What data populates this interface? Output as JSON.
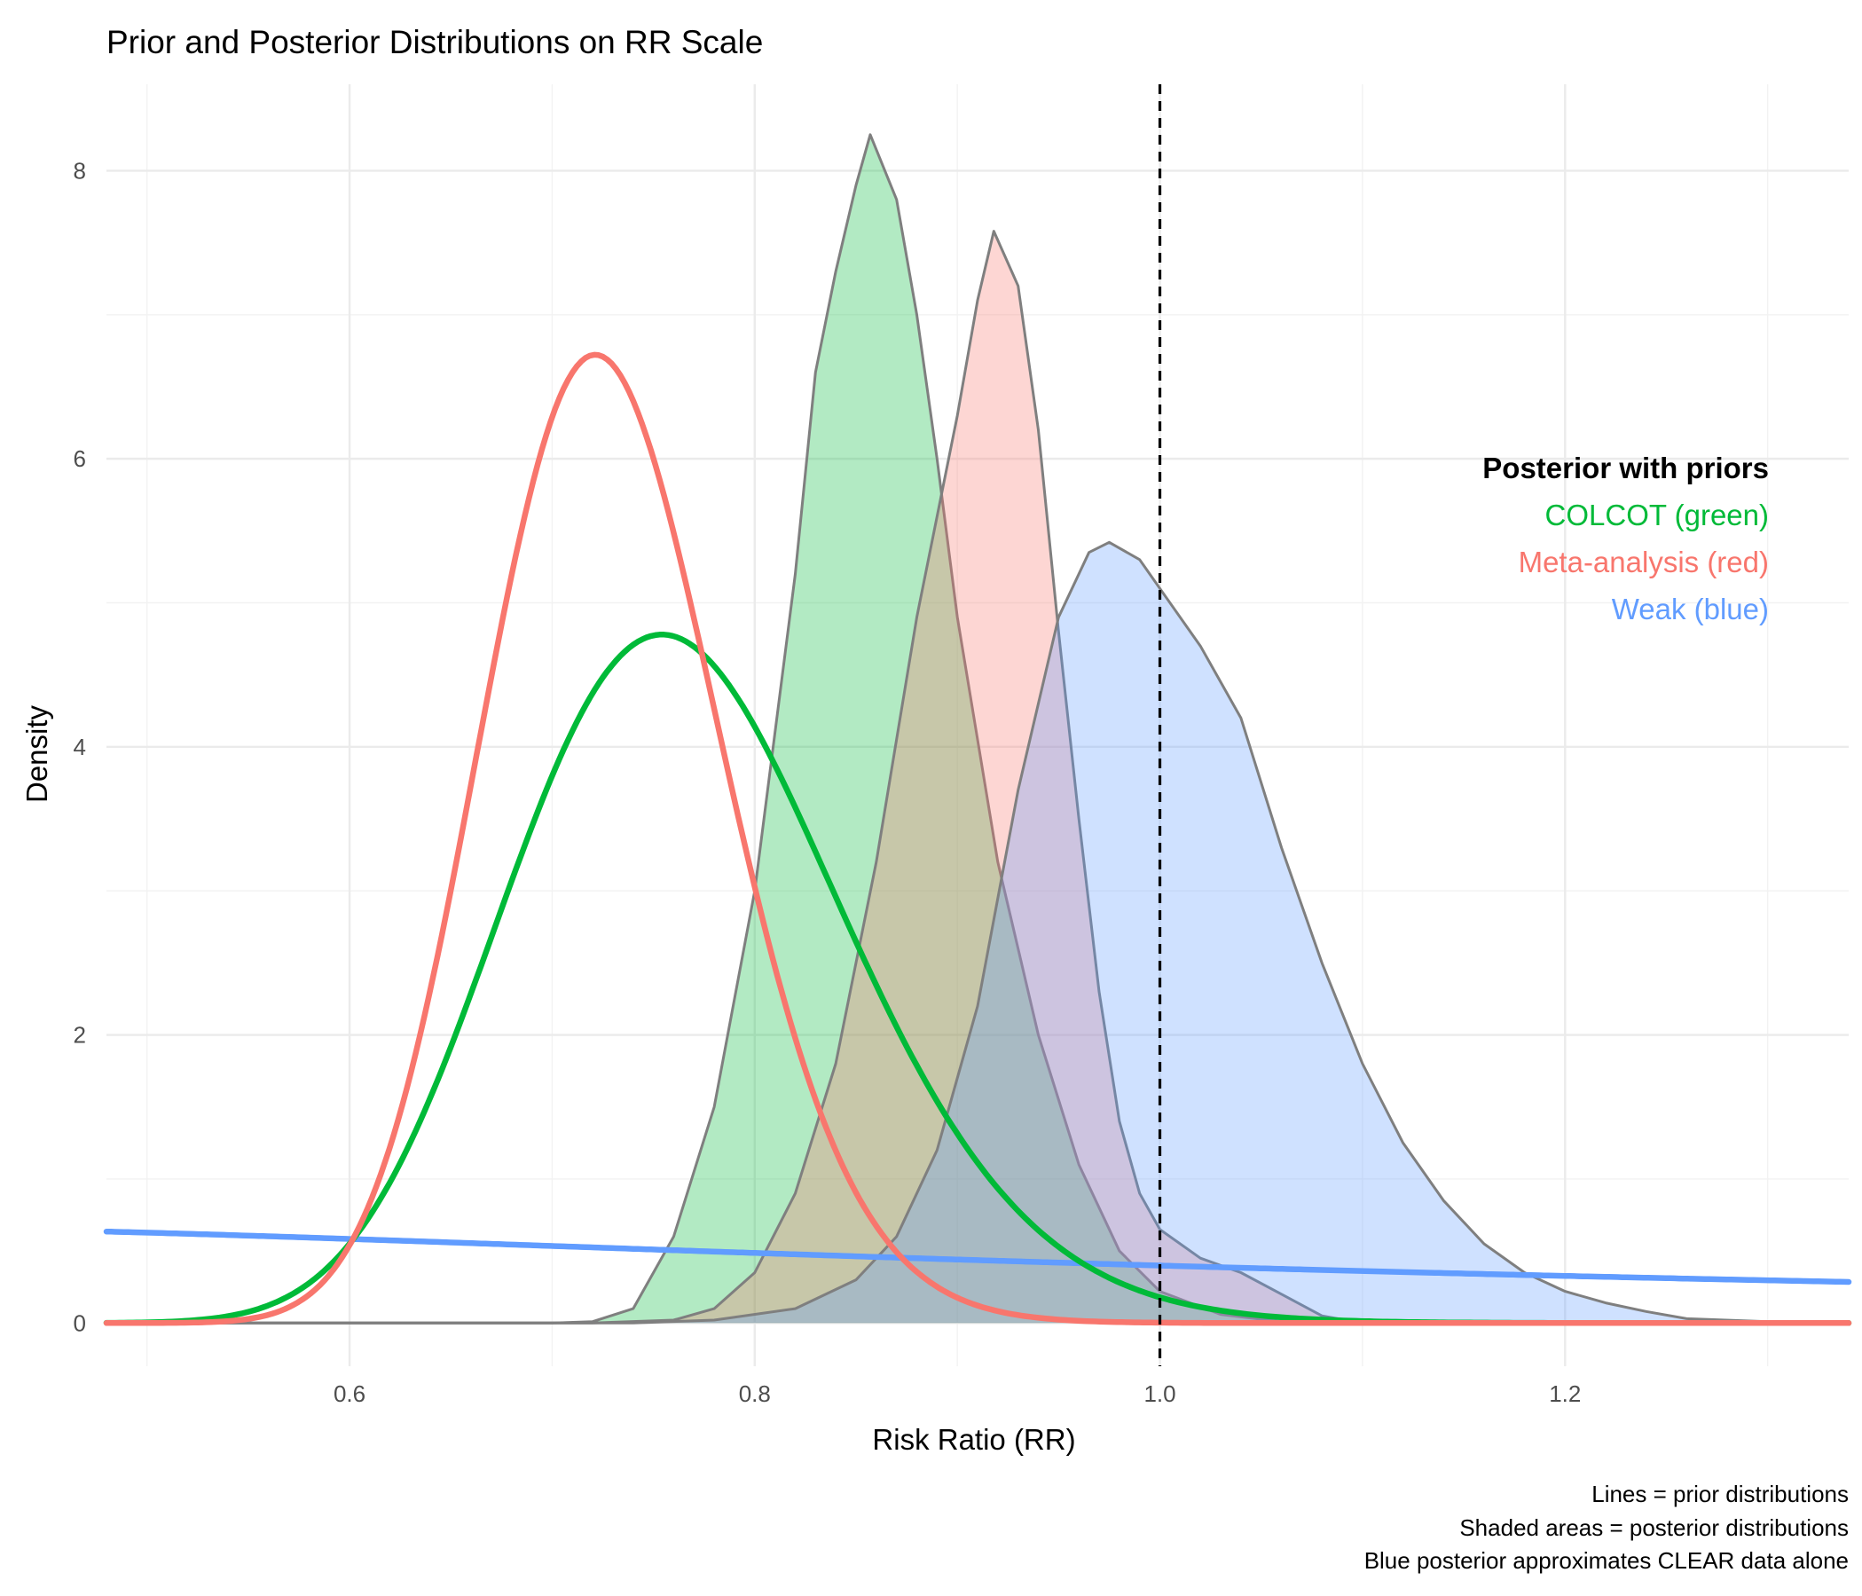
{
  "chart_data": {
    "type": "area",
    "title": "Prior and Posterior Distributions on RR Scale",
    "xlabel": "Risk Ratio (RR)",
    "ylabel": "Density",
    "xlim": [
      0.48,
      1.34
    ],
    "ylim": [
      -0.3,
      8.6
    ],
    "x_ticks": [
      0.6,
      0.8,
      1.0,
      1.2
    ],
    "x_tick_labels": [
      "0.6",
      "0.8",
      "1.0",
      "1.2"
    ],
    "y_ticks": [
      0,
      2,
      4,
      6,
      8
    ],
    "y_tick_labels": [
      "0",
      "2",
      "4",
      "6",
      "8"
    ],
    "grid": true,
    "reference_line": {
      "x": 1.0,
      "style": "dashed",
      "color": "#000000"
    },
    "posteriors": [
      {
        "color": "#00BA38",
        "points": [
          [
            0.7,
            0
          ],
          [
            0.72,
            0.01
          ],
          [
            0.74,
            0.1
          ],
          [
            0.76,
            0.6
          ],
          [
            0.78,
            1.5
          ],
          [
            0.8,
            3.0
          ],
          [
            0.82,
            5.2
          ],
          [
            0.83,
            6.6
          ],
          [
            0.84,
            7.3
          ],
          [
            0.85,
            7.9
          ],
          [
            0.857,
            8.25
          ],
          [
            0.87,
            7.8
          ],
          [
            0.88,
            7.0
          ],
          [
            0.89,
            6.0
          ],
          [
            0.9,
            4.9
          ],
          [
            0.92,
            3.2
          ],
          [
            0.94,
            2.0
          ],
          [
            0.96,
            1.1
          ],
          [
            0.98,
            0.5
          ],
          [
            1.0,
            0.22
          ],
          [
            1.03,
            0.06
          ],
          [
            1.06,
            0.01
          ],
          [
            1.1,
            0
          ]
        ]
      },
      {
        "color": "#F8766D",
        "points": [
          [
            0.72,
            0
          ],
          [
            0.76,
            0.02
          ],
          [
            0.78,
            0.1
          ],
          [
            0.8,
            0.35
          ],
          [
            0.82,
            0.9
          ],
          [
            0.84,
            1.8
          ],
          [
            0.86,
            3.2
          ],
          [
            0.88,
            4.9
          ],
          [
            0.9,
            6.3
          ],
          [
            0.91,
            7.1
          ],
          [
            0.918,
            7.58
          ],
          [
            0.93,
            7.2
          ],
          [
            0.94,
            6.2
          ],
          [
            0.95,
            4.8
          ],
          [
            0.96,
            3.5
          ],
          [
            0.97,
            2.3
          ],
          [
            0.98,
            1.4
          ],
          [
            0.99,
            0.9
          ],
          [
            1.0,
            0.65
          ],
          [
            1.02,
            0.45
          ],
          [
            1.04,
            0.35
          ],
          [
            1.06,
            0.2
          ],
          [
            1.08,
            0.05
          ],
          [
            1.1,
            0
          ]
        ]
      },
      {
        "color": "#619CFF",
        "points": [
          [
            0.74,
            0
          ],
          [
            0.78,
            0.02
          ],
          [
            0.82,
            0.1
          ],
          [
            0.85,
            0.3
          ],
          [
            0.87,
            0.6
          ],
          [
            0.89,
            1.2
          ],
          [
            0.91,
            2.2
          ],
          [
            0.93,
            3.7
          ],
          [
            0.95,
            4.9
          ],
          [
            0.965,
            5.35
          ],
          [
            0.975,
            5.42
          ],
          [
            0.99,
            5.3
          ],
          [
            1.0,
            5.1
          ],
          [
            1.02,
            4.7
          ],
          [
            1.04,
            4.2
          ],
          [
            1.06,
            3.3
          ],
          [
            1.08,
            2.5
          ],
          [
            1.1,
            1.8
          ],
          [
            1.12,
            1.25
          ],
          [
            1.14,
            0.85
          ],
          [
            1.16,
            0.55
          ],
          [
            1.18,
            0.35
          ],
          [
            1.2,
            0.22
          ],
          [
            1.22,
            0.14
          ],
          [
            1.24,
            0.08
          ],
          [
            1.26,
            0.03
          ],
          [
            1.3,
            0.01
          ],
          [
            1.34,
            0
          ]
        ]
      }
    ],
    "priors": [
      {
        "color": "#00BA38",
        "distribution": "lognormal",
        "meanlog": -0.27,
        "sdlog": 0.11
      },
      {
        "color": "#F8766D",
        "distribution": "lognormal",
        "meanlog": -0.32,
        "sdlog": 0.082
      },
      {
        "color": "#619CFF",
        "distribution": "lognormal",
        "meanlog": 0,
        "sdlog": 1.0
      }
    ],
    "legend": {
      "position": "right",
      "heading": "Posterior with priors",
      "items": [
        {
          "label": "COLCOT (green)",
          "color": "#00BA38"
        },
        {
          "label": "Meta-analysis (red)",
          "color": "#F8766D"
        },
        {
          "label": "Weak (blue)",
          "color": "#619CFF"
        }
      ]
    },
    "caption": [
      "Lines = prior distributions",
      "Shaded areas = posterior distributions",
      "Blue posterior approximates CLEAR data alone"
    ]
  }
}
